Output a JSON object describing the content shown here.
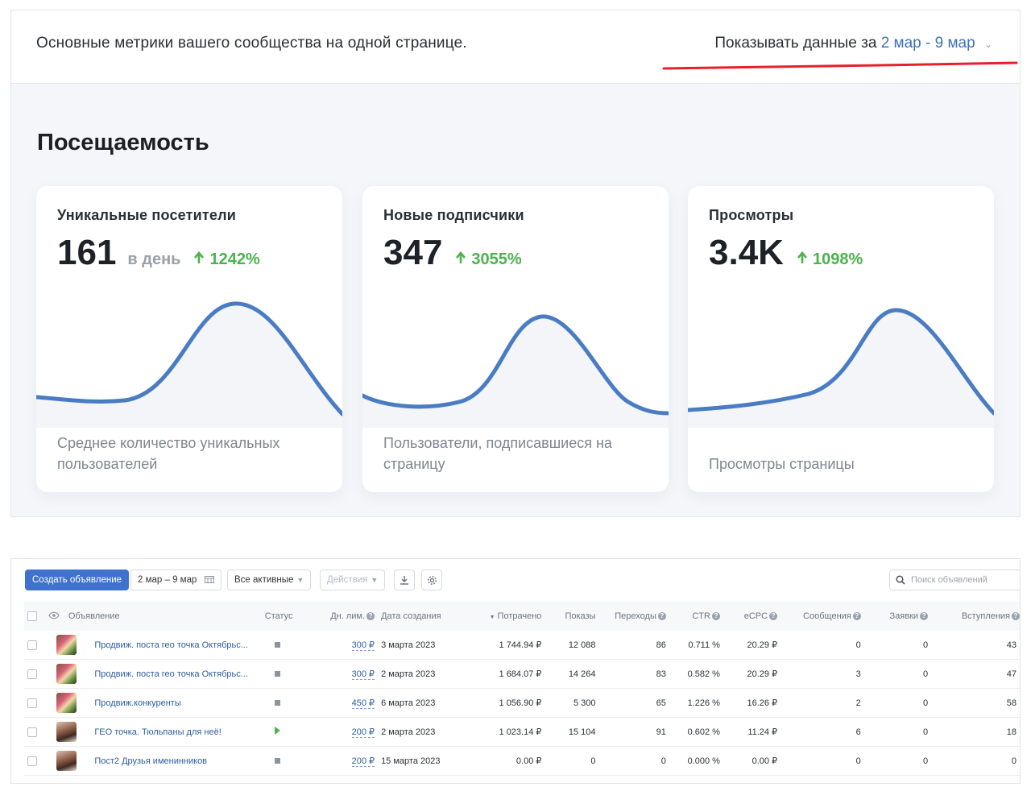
{
  "stats": {
    "subtitle": "Основные метрики вашего сообщества на одной странице.",
    "period_prefix": "Показывать данные за",
    "period_range": "2 мар - 9 мар",
    "section_title": "Посещаемость",
    "accent_color": "#4a7cc4",
    "growth_color": "#4bb34b",
    "highlight_color": "#e8202a",
    "cards": [
      {
        "title": "Уникальные посетители",
        "value": "161",
        "unit": "в день",
        "delta": "1242%",
        "description": "Среднее количество уникальных пользователей"
      },
      {
        "title": "Новые подписчики",
        "value": "347",
        "unit": "",
        "delta": "3055%",
        "description": "Пользователи, подписавшиеся на страницу"
      },
      {
        "title": "Просмотры",
        "value": "3.4K",
        "unit": "",
        "delta": "1098%",
        "description": "Просмотры страницы"
      }
    ]
  },
  "ads": {
    "toolbar": {
      "create_label": "Создать объявление",
      "date_range": "2 мар – 9 мар",
      "filter_label": "Все активные",
      "actions_label": "Действия",
      "search_placeholder": "Поиск объявлений"
    },
    "columns": {
      "ad": "Объявление",
      "status": "Статус",
      "daily_limit": "Дн. лим.",
      "created": "Дата создания",
      "spent": "Потрачено",
      "impressions": "Показы",
      "clicks": "Переходы",
      "ctr": "CTR",
      "ecpc": "eCPC",
      "messages": "Сообщения",
      "requests": "Заявки",
      "joins": "Вступления"
    },
    "rows": [
      {
        "name": "Продвиж. поста гео точка Октябрьс...",
        "status": "paused",
        "limit": "300 ₽",
        "created": "3 марта 2023",
        "spent": "1 744.94 ₽",
        "impressions": "12 088",
        "clicks": "86",
        "ctr": "0.711 %",
        "ecpc": "20.29 ₽",
        "messages": "0",
        "requests": "0",
        "joins": "43",
        "thumb": "flowers"
      },
      {
        "name": "Продвиж. поста гео точка Октябрьс...",
        "status": "paused",
        "limit": "300 ₽",
        "created": "2 марта 2023",
        "spent": "1 684.07 ₽",
        "impressions": "14 264",
        "clicks": "83",
        "ctr": "0.582 %",
        "ecpc": "20.29 ₽",
        "messages": "3",
        "requests": "0",
        "joins": "47",
        "thumb": "flowers"
      },
      {
        "name": "Продвиж.конкуренты",
        "status": "paused",
        "limit": "450 ₽",
        "created": "6 марта 2023",
        "spent": "1 056.90 ₽",
        "impressions": "5 300",
        "clicks": "65",
        "ctr": "1.226 %",
        "ecpc": "16.26 ₽",
        "messages": "2",
        "requests": "0",
        "joins": "58",
        "thumb": "flowers"
      },
      {
        "name": "ГЕО точка. Тюльпаны для неё!",
        "status": "active",
        "limit": "200 ₽",
        "created": "2 марта 2023",
        "spent": "1 023.14 ₽",
        "impressions": "15 104",
        "clicks": "91",
        "ctr": "0.602 %",
        "ecpc": "11.24 ₽",
        "messages": "6",
        "requests": "0",
        "joins": "18",
        "thumb": "person"
      },
      {
        "name": "Пост2 Друзья именинников",
        "status": "paused",
        "limit": "200 ₽",
        "created": "15 марта 2023",
        "spent": "0.00 ₽",
        "impressions": "0",
        "clicks": "0",
        "ctr": "0.000 %",
        "ecpc": "0.00 ₽",
        "messages": "0",
        "requests": "0",
        "joins": "0",
        "thumb": "person"
      }
    ]
  }
}
